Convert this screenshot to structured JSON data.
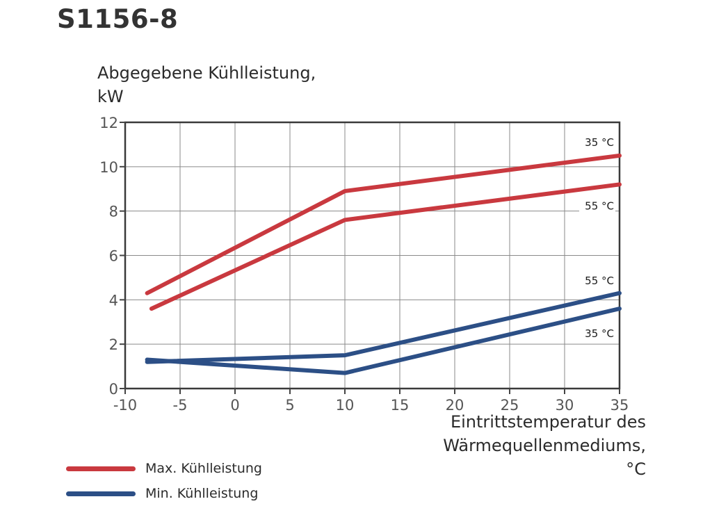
{
  "title": "S1156-8",
  "chart_data": {
    "type": "line",
    "ylabel_line1": "Abgegebene Kühlleistung,",
    "ylabel_line2": "kW",
    "xlabel_line1": "Eintrittstemperatur des",
    "xlabel_line2": "Wärmequellenmediums,",
    "xlabel_line3": "°C",
    "xlim": [
      -10,
      35
    ],
    "ylim": [
      0,
      12
    ],
    "xticks": [
      -10,
      -5,
      0,
      5,
      10,
      15,
      20,
      25,
      30,
      35
    ],
    "yticks": [
      0,
      2,
      4,
      6,
      8,
      10,
      12
    ],
    "xtick_labels": [
      "-10",
      "-5",
      "0",
      "5",
      "10",
      "15",
      "20",
      "25",
      "30",
      "35"
    ],
    "ytick_labels": [
      "0",
      "2",
      "4",
      "6",
      "8",
      "10",
      "12"
    ],
    "grid": true,
    "series": [
      {
        "group": "max",
        "color": "#c9393f",
        "x": [
          -8,
          10,
          35
        ],
        "y": [
          4.3,
          8.9,
          10.5
        ],
        "label": "35 °C"
      },
      {
        "group": "max",
        "color": "#c9393f",
        "x": [
          -7.6,
          10,
          35
        ],
        "y": [
          3.6,
          7.6,
          9.2
        ],
        "label": "55 °C"
      },
      {
        "group": "min",
        "color": "#2c4f86",
        "x": [
          -8,
          10,
          35
        ],
        "y": [
          1.2,
          1.5,
          4.3
        ],
        "label": "55 °C"
      },
      {
        "group": "min",
        "color": "#2c4f86",
        "x": [
          -8,
          10,
          35
        ],
        "y": [
          1.3,
          0.7,
          3.6
        ],
        "label": "35 °C"
      }
    ],
    "legend": [
      {
        "label": "Max. Kühlleistung",
        "color": "#c9393f"
      },
      {
        "label": "Min. Kühlleistung",
        "color": "#2c4f86"
      }
    ],
    "legend_position": "bottom-left"
  }
}
